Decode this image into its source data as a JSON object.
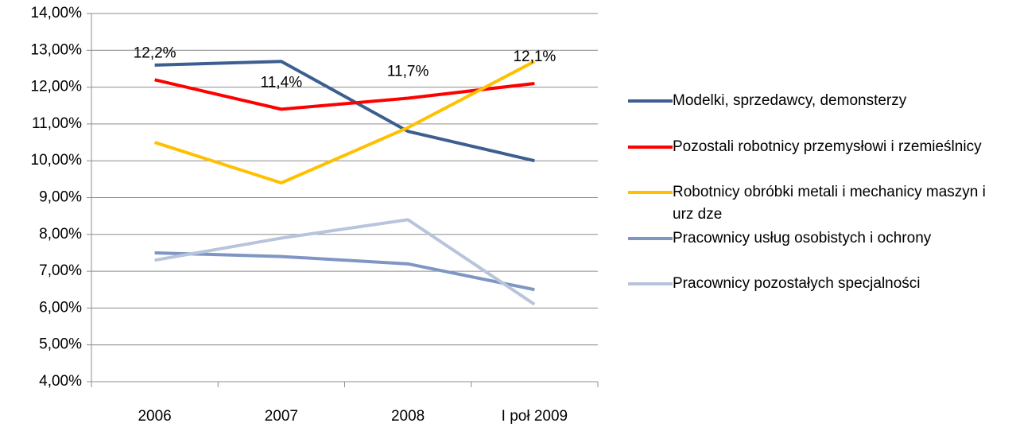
{
  "chart_data": {
    "type": "line",
    "categories": [
      "2006",
      "2007",
      "2008",
      "I poł 2009"
    ],
    "series": [
      {
        "name": "Modelki, sprzedawcy, demonsterzy",
        "color": "#3d5f8f",
        "values": [
          12.6,
          12.7,
          10.8,
          10.0
        ]
      },
      {
        "name": "Pozostali robotnicy przemysłowi i rzemieślnicy",
        "color": "#ff0000",
        "values": [
          12.2,
          11.4,
          11.7,
          12.1
        ],
        "value_labels": [
          "12,2%",
          "11,4%",
          "11,7%",
          "12,1%"
        ]
      },
      {
        "name": "Robotnicy obróbki metali i mechanicy maszyn i urz dze",
        "color": "#ffc000",
        "values": [
          10.5,
          9.4,
          10.9,
          12.7
        ]
      },
      {
        "name": "Pracownicy usług osobistych i ochrony",
        "color": "#7f96c4",
        "values": [
          7.5,
          7.4,
          7.2,
          6.5
        ]
      },
      {
        "name": "Pracownicy pozostałych specjalności",
        "color": "#b8c4dc",
        "values": [
          7.3,
          7.9,
          8.4,
          6.1
        ]
      }
    ],
    "ylim": [
      4,
      14
    ],
    "yticks": [
      {
        "value": 4,
        "label": "4,00%"
      },
      {
        "value": 5,
        "label": "5,00%"
      },
      {
        "value": 6,
        "label": "6,00%"
      },
      {
        "value": 7,
        "label": "7,00%"
      },
      {
        "value": 8,
        "label": "8,00%"
      },
      {
        "value": 9,
        "label": "9,00%"
      },
      {
        "value": 10,
        "label": "10,00%"
      },
      {
        "value": 11,
        "label": "11,00%"
      },
      {
        "value": 12,
        "label": "12,00%"
      },
      {
        "value": 13,
        "label": "13,00%"
      },
      {
        "value": 14,
        "label": "14,00%"
      }
    ],
    "grid": true,
    "legend": "right"
  }
}
